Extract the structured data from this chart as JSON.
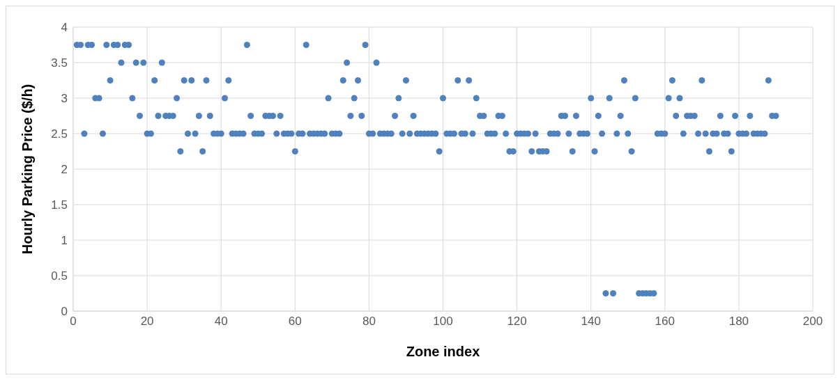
{
  "chart_data": {
    "type": "scatter",
    "xlabel": "Zone index",
    "ylabel": "Hourly Parking Price ($/h)",
    "x": [
      1,
      2,
      3,
      4,
      5,
      6,
      7,
      8,
      9,
      10,
      11,
      12,
      13,
      14,
      15,
      16,
      17,
      18,
      19,
      20,
      21,
      22,
      23,
      24,
      25,
      26,
      27,
      28,
      29,
      30,
      31,
      32,
      33,
      34,
      35,
      36,
      37,
      38,
      39,
      40,
      41,
      42,
      43,
      44,
      45,
      46,
      47,
      48,
      49,
      50,
      51,
      52,
      53,
      54,
      55,
      56,
      57,
      58,
      59,
      60,
      61,
      62,
      63,
      64,
      65,
      66,
      67,
      68,
      69,
      70,
      71,
      72,
      73,
      74,
      75,
      76,
      77,
      78,
      79,
      80,
      81,
      82,
      83,
      84,
      85,
      86,
      87,
      88,
      89,
      90,
      91,
      92,
      93,
      94,
      95,
      96,
      97,
      98,
      99,
      100,
      101,
      102,
      103,
      104,
      105,
      106,
      107,
      108,
      109,
      110,
      111,
      112,
      113,
      114,
      115,
      116,
      117,
      118,
      119,
      120,
      121,
      122,
      123,
      124,
      125,
      126,
      127,
      128,
      129,
      130,
      131,
      132,
      133,
      134,
      135,
      136,
      137,
      138,
      139,
      140,
      141,
      142,
      143,
      144,
      145,
      146,
      147,
      148,
      149,
      150,
      151,
      152,
      153,
      154,
      155,
      156,
      157,
      158,
      159,
      160,
      161,
      162,
      163,
      164,
      165,
      166,
      167,
      168,
      169,
      170,
      171,
      172,
      173,
      174,
      175,
      176,
      177,
      178,
      179,
      180,
      181,
      182,
      183,
      184,
      185,
      186,
      187,
      188,
      189,
      190
    ],
    "series": [
      {
        "color": "#4f81bd",
        "values": [
          3.75,
          3.75,
          2.5,
          3.75,
          3.75,
          3.0,
          3.0,
          2.5,
          3.75,
          3.25,
          3.75,
          3.75,
          3.5,
          3.75,
          3.75,
          3.0,
          3.5,
          2.75,
          3.5,
          2.5,
          2.5,
          3.25,
          2.75,
          3.5,
          2.75,
          2.75,
          2.75,
          3.0,
          2.25,
          3.25,
          2.5,
          3.25,
          2.5,
          2.75,
          2.25,
          3.25,
          2.75,
          2.5,
          2.5,
          2.5,
          3.0,
          3.25,
          2.5,
          2.5,
          2.5,
          2.5,
          3.75,
          2.75,
          2.5,
          2.5,
          2.5,
          2.75,
          2.75,
          2.75,
          2.5,
          2.75,
          2.5,
          2.5,
          2.5,
          2.25,
          2.5,
          2.5,
          3.75,
          2.5,
          2.5,
          2.5,
          2.5,
          2.5,
          3.0,
          2.5,
          2.5,
          2.5,
          3.25,
          3.5,
          2.75,
          3.0,
          3.25,
          2.75,
          3.75,
          2.5,
          2.5,
          3.5,
          2.5,
          2.5,
          2.5,
          2.5,
          2.75,
          3.0,
          2.5,
          3.25,
          2.5,
          2.75,
          2.5,
          2.5,
          2.5,
          2.5,
          2.5,
          2.5,
          2.25,
          3.0,
          2.5,
          2.5,
          2.5,
          3.25,
          2.5,
          2.5,
          3.25,
          2.5,
          3.0,
          2.75,
          2.75,
          2.5,
          2.5,
          2.5,
          2.75,
          2.75,
          2.5,
          2.25,
          2.25,
          2.5,
          2.5,
          2.5,
          2.5,
          2.25,
          2.5,
          2.25,
          2.25,
          2.25,
          2.5,
          2.5,
          2.5,
          2.75,
          2.75,
          2.5,
          2.25,
          2.75,
          2.5,
          2.5,
          2.5,
          3.0,
          2.25,
          2.75,
          2.5,
          0.25,
          3.0,
          0.25,
          2.5,
          2.75,
          3.25,
          2.5,
          2.25,
          3.0,
          0.25,
          0.25,
          0.25,
          0.25,
          0.25,
          2.5,
          2.5,
          2.5,
          3.0,
          3.25,
          2.75,
          3.0,
          2.5,
          2.75,
          2.75,
          2.75,
          2.5,
          3.25,
          2.5,
          2.25,
          2.5,
          2.5,
          2.75,
          2.5,
          2.5,
          2.25,
          2.75,
          2.5,
          2.5,
          2.5,
          2.75,
          2.5,
          2.5,
          2.5,
          2.5,
          3.25,
          2.75,
          2.75
        ]
      }
    ],
    "xlim": [
      0,
      200
    ],
    "xticks": [
      0,
      20,
      40,
      60,
      80,
      100,
      120,
      140,
      160,
      180,
      200
    ],
    "ylim": [
      0,
      4
    ],
    "yticks": [
      0,
      0.5,
      1,
      1.5,
      2,
      2.5,
      3,
      3.5,
      4
    ],
    "grid": true,
    "marker": "circle"
  }
}
